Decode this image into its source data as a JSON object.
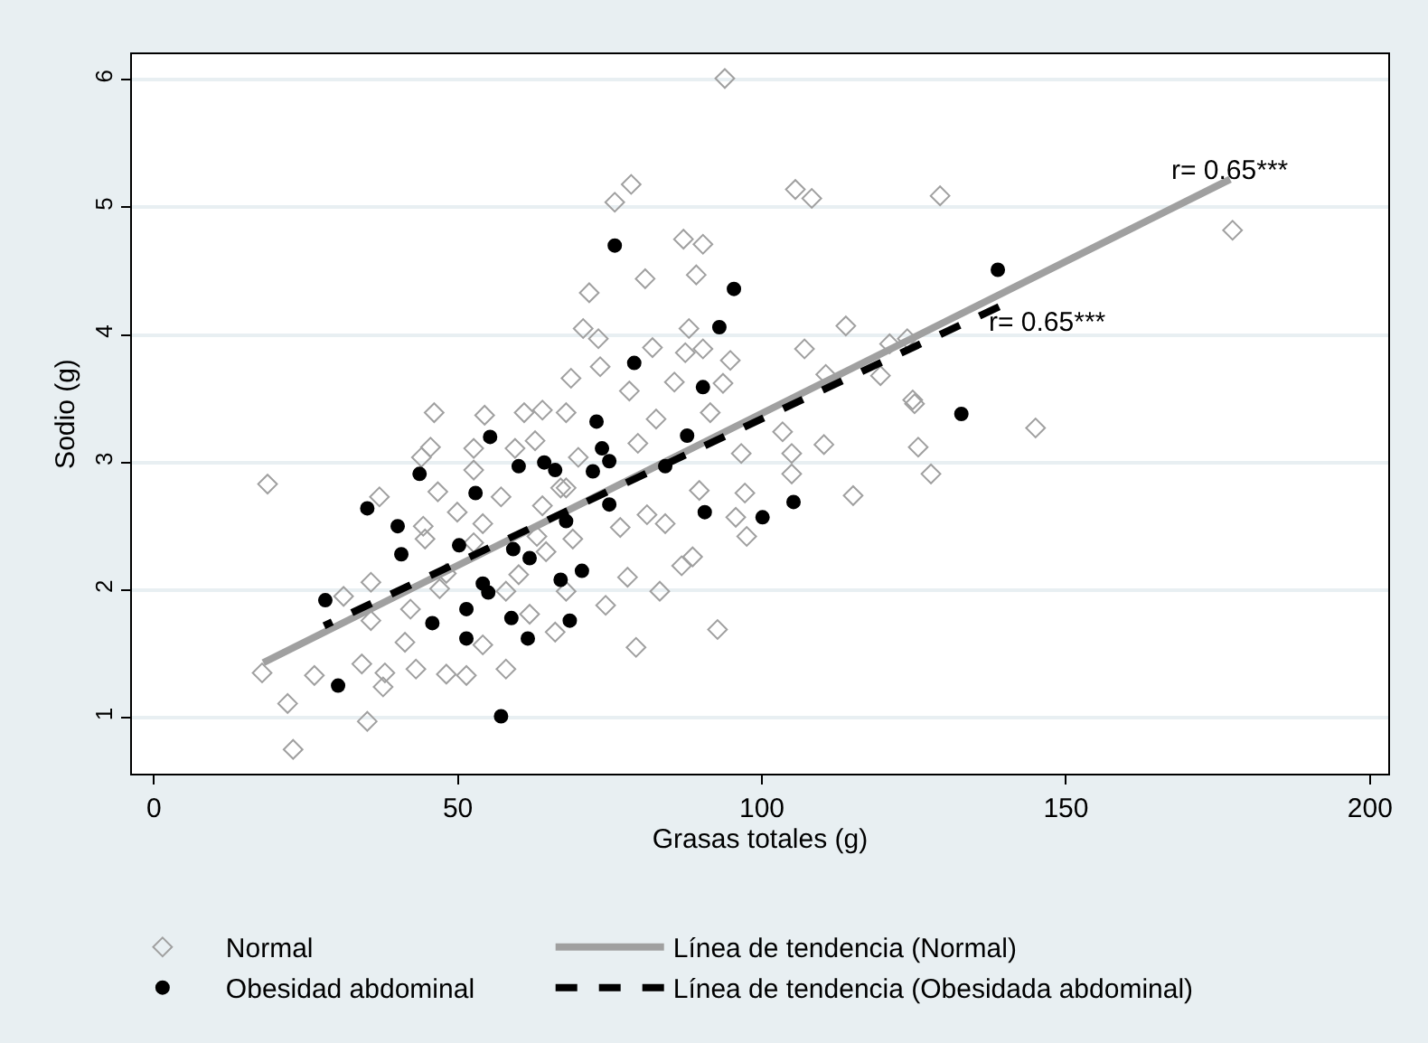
{
  "chart_data": {
    "type": "scatter",
    "xlabel": "Grasas totales (g)",
    "ylabel": "Sodio (g)",
    "xlim": [
      -3.6,
      203
    ],
    "xticks": [
      0,
      50,
      100,
      150,
      200
    ],
    "ylim": [
      0.56,
      6.2
    ],
    "yticks": [
      1,
      2,
      3,
      4,
      5,
      6
    ],
    "grid": "y",
    "legend": "bottom",
    "series": [
      {
        "name": "Normal",
        "type": "scatter",
        "marker": "diamond",
        "color": "#a0a0a0",
        "x": [
          93.9,
          75.8,
          78.5,
          105.5,
          108.2,
          129.3,
          87.1,
          90.3,
          80.8,
          89.2,
          71.6,
          70.6,
          73.1,
          82.0,
          88.0,
          87.4,
          90.3,
          94.8,
          73.4,
          68.6,
          85.6,
          93.6,
          78.2,
          107.0,
          113.8,
          121.0,
          123.9,
          119.5,
          124.8,
          110.5,
          177.4,
          145.0,
          125.1,
          125.7,
          127.8,
          115.0,
          110.2,
          103.4,
          104.9,
          104.9,
          96.6,
          97.2,
          97.5,
          95.7,
          92.7,
          79.3,
          83.2,
          88.6,
          86.8,
          84.1,
          81.1,
          76.7,
          74.3,
          77.9,
          66.0,
          89.7,
          82.6,
          91.5,
          67.8,
          79.6,
          68.9,
          64.5,
          46.1,
          18.7,
          37.1,
          44.3,
          52.6,
          45.5,
          62.7,
          46.7,
          17.8,
          26.4,
          22.0,
          22.9,
          35.1,
          34.2,
          38.0,
          37.7,
          43.1,
          48.1,
          51.4,
          57.9,
          54.1,
          41.3,
          35.7,
          35.7,
          42.2,
          47.0,
          44.6,
          31.2,
          44.0,
          49.9,
          57.1,
          48.1,
          57.9,
          61.8,
          67.8,
          60.0,
          63.0,
          54.1,
          67.8,
          69.8,
          52.6,
          54.4,
          60.9,
          63.9,
          59.4,
          52.6,
          63.9,
          66.9
        ],
        "values": [
          6.01,
          5.04,
          5.18,
          5.14,
          5.07,
          5.09,
          4.75,
          4.71,
          4.44,
          4.47,
          4.33,
          4.05,
          3.97,
          3.9,
          4.05,
          3.86,
          3.89,
          3.8,
          3.75,
          3.66,
          3.63,
          3.62,
          3.56,
          3.89,
          4.07,
          3.93,
          3.97,
          3.68,
          3.49,
          3.69,
          4.82,
          3.27,
          3.46,
          3.12,
          2.91,
          2.74,
          3.14,
          3.24,
          3.07,
          2.91,
          3.07,
          2.76,
          2.42,
          2.57,
          1.69,
          1.55,
          1.99,
          2.26,
          2.19,
          2.52,
          2.59,
          2.49,
          1.88,
          2.1,
          1.67,
          2.78,
          3.34,
          3.39,
          3.39,
          3.15,
          2.4,
          2.3,
          3.39,
          2.83,
          2.73,
          2.5,
          3.11,
          3.12,
          3.17,
          2.77,
          1.35,
          1.33,
          1.11,
          0.75,
          0.97,
          1.42,
          1.35,
          1.24,
          1.38,
          1.34,
          1.33,
          1.38,
          1.57,
          1.59,
          1.76,
          2.06,
          1.85,
          2.01,
          2.4,
          1.95,
          3.04,
          2.61,
          2.73,
          2.13,
          1.99,
          1.81,
          1.99,
          2.12,
          2.42,
          2.52,
          2.8,
          3.04,
          2.94,
          3.37,
          3.39,
          3.41,
          3.11,
          2.37,
          2.66,
          2.8
        ]
      },
      {
        "name": "Línea de tendencia (Normal)",
        "type": "line",
        "line_style": "solid",
        "color": "#a0a0a0",
        "x": [
          18,
          177
        ],
        "values": [
          1.43,
          5.22
        ]
      },
      {
        "name": "Obesidad abdominal",
        "type": "scatter",
        "marker": "circle",
        "color": "#000000",
        "x": [
          75.8,
          95.4,
          93.0,
          79.0,
          90.3,
          132.8,
          138.8,
          72.8,
          73.7,
          74.9,
          72.2,
          66.0,
          87.7,
          84.1,
          74.9,
          67.8,
          90.6,
          100.1,
          105.2,
          66.9,
          70.4,
          68.4,
          55.3,
          43.7,
          35.1,
          40.1,
          40.7,
          52.9,
          60.0,
          64.2,
          50.2,
          59.1,
          61.8,
          54.1,
          55.0,
          51.4,
          45.8,
          51.4,
          58.8,
          61.5,
          28.2,
          30.3,
          57.1
        ],
        "values": [
          4.7,
          4.36,
          4.06,
          3.78,
          3.59,
          3.38,
          4.51,
          3.32,
          3.11,
          3.01,
          2.93,
          2.94,
          3.21,
          2.97,
          2.67,
          2.54,
          2.61,
          2.57,
          2.69,
          2.08,
          2.15,
          1.76,
          3.2,
          2.91,
          2.64,
          2.5,
          2.28,
          2.76,
          2.97,
          3.0,
          2.35,
          2.32,
          2.25,
          2.05,
          1.98,
          1.85,
          1.74,
          1.62,
          1.78,
          1.62,
          1.92,
          1.25,
          1.01
        ]
      },
      {
        "name": "Línea de tendencia (Obesidada abdominal)",
        "type": "line",
        "line_style": "dashed",
        "color": "#000000",
        "x": [
          28,
          139
        ],
        "values": [
          1.72,
          4.22
        ]
      }
    ],
    "annotations": [
      {
        "text": "r= 0.65***",
        "x": 177,
        "y": 5.22
      },
      {
        "text": "r= 0.65***",
        "x": 139,
        "y": 4.22
      }
    ]
  }
}
